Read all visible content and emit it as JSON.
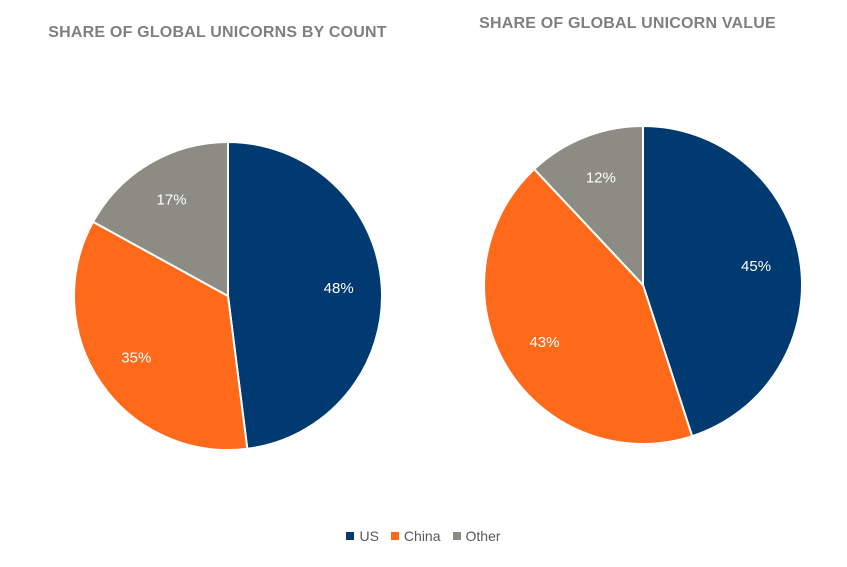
{
  "chart_data": [
    {
      "type": "pie",
      "title": "SHARE OF GLOBAL UNICORNS BY COUNT",
      "categories": [
        "US",
        "China",
        "Other"
      ],
      "values": [
        48,
        35,
        17
      ],
      "labels": [
        "48%",
        "35%",
        "17%"
      ],
      "colors": [
        "#003a70",
        "#ff6a1a",
        "#8c8c85"
      ]
    },
    {
      "type": "pie",
      "title": "SHARE OF GLOBAL UNICORN VALUE",
      "categories": [
        "US",
        "China",
        "Other"
      ],
      "values": [
        45,
        43,
        12
      ],
      "labels": [
        "45%",
        "43%",
        "12%"
      ],
      "colors": [
        "#003a70",
        "#ff6a1a",
        "#8c8c85"
      ]
    }
  ],
  "legend": {
    "position": "bottom",
    "items": [
      {
        "label": "US",
        "color": "#003a70"
      },
      {
        "label": "China",
        "color": "#ff6a1a"
      },
      {
        "label": "Other",
        "color": "#8c8c85"
      }
    ]
  }
}
